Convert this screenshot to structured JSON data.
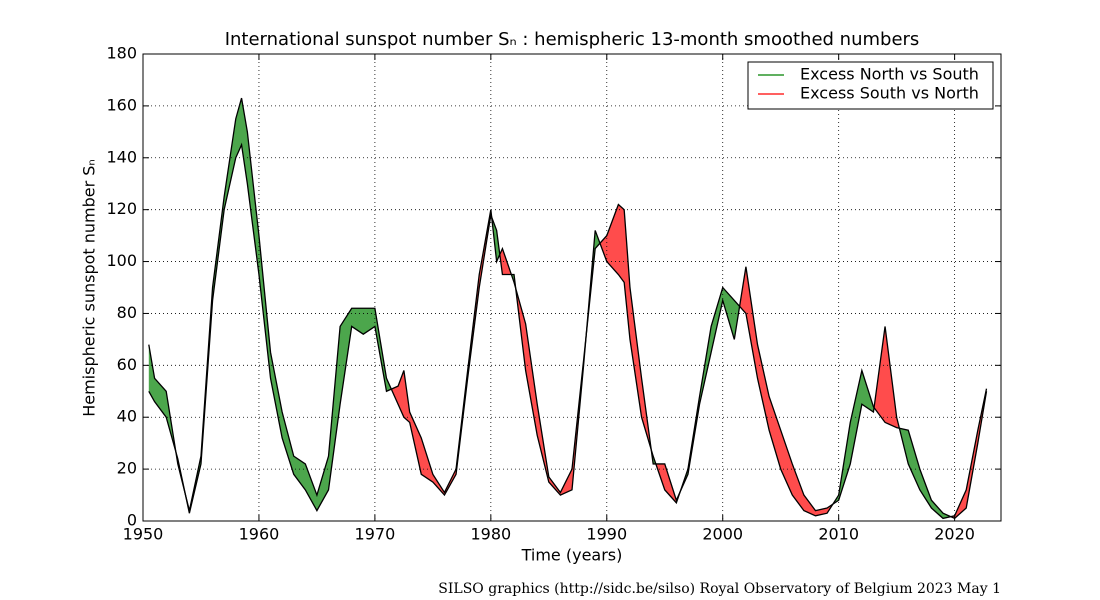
{
  "chart_data": {
    "type": "filled-difference",
    "title": "International sunspot number Sₙ : hemispheric 13-month smoothed numbers",
    "xlabel": "Time (years)",
    "ylabel": "Hemispheric sunspot number Sₙ",
    "footer": "SILSO graphics (http://sidc.be/silso)  Royal Observatory of Belgium  2023 May 1",
    "x": [
      1950.5,
      1951,
      1952,
      1953,
      1954,
      1955,
      1956,
      1957,
      1958,
      1958.5,
      1959,
      1960,
      1961,
      1962,
      1963,
      1964,
      1965,
      1966,
      1967,
      1968,
      1969,
      1970,
      1971,
      1972,
      1972.5,
      1973,
      1974,
      1975,
      1976,
      1977,
      1978,
      1979,
      1980,
      1980.5,
      1981,
      1982,
      1983,
      1984,
      1985,
      1986,
      1987,
      1988,
      1989,
      1990,
      1991,
      1991.5,
      1992,
      1993,
      1994,
      1995,
      1996,
      1997,
      1998,
      1999,
      2000,
      2001,
      2002,
      2003,
      2004,
      2005,
      2006,
      2007,
      2008,
      2009,
      2010,
      2011,
      2012,
      2013,
      2014,
      2015,
      2016,
      2017,
      2018,
      2019,
      2020,
      2021,
      2022,
      2022.75
    ],
    "series": [
      {
        "values": [
          68,
          55,
          50,
          22,
          4,
          25,
          90,
          125,
          155,
          163,
          150,
          110,
          65,
          42,
          25,
          22,
          10,
          25,
          75,
          82,
          82,
          82,
          55,
          45,
          40,
          38,
          18,
          15,
          10,
          18,
          55,
          90,
          118,
          112,
          95,
          95,
          58,
          33,
          15,
          10,
          12,
          60,
          112,
          100,
          95,
          92,
          70,
          40,
          25,
          12,
          7,
          20,
          48,
          75,
          90,
          85,
          80,
          55,
          35,
          20,
          10,
          4,
          2,
          3,
          10,
          38,
          58,
          44,
          38,
          36,
          35,
          20,
          8,
          3,
          1,
          5,
          30,
          50
        ]
      },
      {
        "values": [
          50,
          46,
          40,
          24,
          3,
          22,
          85,
          120,
          140,
          145,
          130,
          95,
          55,
          32,
          18,
          12,
          4,
          12,
          45,
          75,
          72,
          75,
          50,
          52,
          58,
          42,
          32,
          18,
          11,
          20,
          58,
          95,
          120,
          100,
          105,
          92,
          76,
          45,
          17,
          11,
          20,
          62,
          105,
          110,
          122,
          120,
          90,
          55,
          22,
          22,
          8,
          18,
          45,
          65,
          85,
          70,
          98,
          68,
          48,
          35,
          22,
          10,
          4,
          5,
          8,
          22,
          45,
          42,
          75,
          40,
          22,
          12,
          5,
          1,
          2,
          12,
          35,
          51
        ]
      }
    ],
    "legend": [
      {
        "name": "Excess North vs South",
        "color": "#008000",
        "fill": "#4ca64c"
      },
      {
        "name": "Excess South vs North",
        "color": "#ff0000",
        "fill": "#ff4c4c"
      }
    ],
    "legend_position": "upper right",
    "xlim": [
      1950,
      2024
    ],
    "xticks": [
      1950,
      1960,
      1970,
      1980,
      1990,
      2000,
      2010,
      2020
    ],
    "ylim": [
      0,
      180
    ],
    "yticks": [
      0,
      20,
      40,
      60,
      80,
      100,
      120,
      140,
      160,
      180
    ],
    "grid": true
  }
}
